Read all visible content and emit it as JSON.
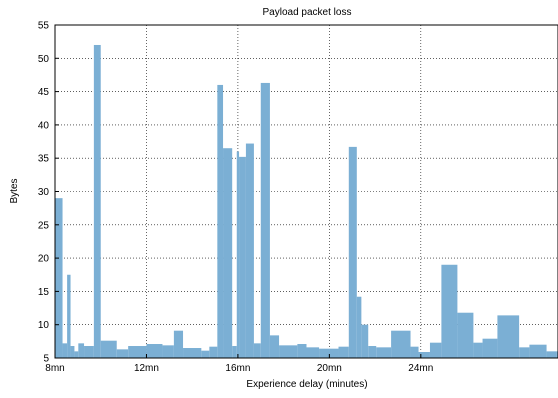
{
  "chart_data": {
    "type": "bar",
    "title": "Payload packet loss",
    "xlabel": "Experience delay (minutes)",
    "ylabel": "Bytes",
    "xlim": [
      8,
      30
    ],
    "ylim": [
      5,
      55
    ],
    "grid": true,
    "bar_color": "#7bafd4",
    "x_ticks": [
      {
        "value": 8,
        "label": "8mn"
      },
      {
        "value": 12,
        "label": "12mn"
      },
      {
        "value": 16,
        "label": "16mn"
      },
      {
        "value": 20,
        "label": "20mn"
      },
      {
        "value": 24,
        "label": "24mn"
      }
    ],
    "y_ticks": [
      5,
      10,
      15,
      20,
      25,
      30,
      35,
      40,
      45,
      50,
      55
    ],
    "bars": [
      {
        "x0": 8.0,
        "x1": 8.33,
        "y": 29.0
      },
      {
        "x0": 8.33,
        "x1": 8.53,
        "y": 7.2
      },
      {
        "x0": 8.53,
        "x1": 8.68,
        "y": 17.5
      },
      {
        "x0": 8.68,
        "x1": 8.85,
        "y": 6.8
      },
      {
        "x0": 8.85,
        "x1": 9.02,
        "y": 6.0
      },
      {
        "x0": 9.02,
        "x1": 9.27,
        "y": 7.2
      },
      {
        "x0": 9.27,
        "x1": 9.7,
        "y": 6.8
      },
      {
        "x0": 9.7,
        "x1": 10.0,
        "y": 52.0
      },
      {
        "x0": 10.0,
        "x1": 10.7,
        "y": 7.6
      },
      {
        "x0": 10.7,
        "x1": 11.2,
        "y": 6.3
      },
      {
        "x0": 11.2,
        "x1": 12.0,
        "y": 6.8
      },
      {
        "x0": 12.0,
        "x1": 12.7,
        "y": 7.1
      },
      {
        "x0": 12.7,
        "x1": 13.2,
        "y": 6.9
      },
      {
        "x0": 13.2,
        "x1": 13.6,
        "y": 9.1
      },
      {
        "x0": 13.6,
        "x1": 14.4,
        "y": 6.5
      },
      {
        "x0": 14.4,
        "x1": 14.75,
        "y": 6.1
      },
      {
        "x0": 14.75,
        "x1": 15.1,
        "y": 6.7
      },
      {
        "x0": 15.1,
        "x1": 15.35,
        "y": 46.0
      },
      {
        "x0": 15.35,
        "x1": 15.75,
        "y": 36.5
      },
      {
        "x0": 15.75,
        "x1": 15.95,
        "y": 6.8
      },
      {
        "x0": 15.95,
        "x1": 16.05,
        "y": 36.0
      },
      {
        "x0": 16.05,
        "x1": 16.35,
        "y": 35.2
      },
      {
        "x0": 16.35,
        "x1": 16.7,
        "y": 37.2
      },
      {
        "x0": 16.7,
        "x1": 17.0,
        "y": 7.2
      },
      {
        "x0": 17.0,
        "x1": 17.4,
        "y": 46.3
      },
      {
        "x0": 17.4,
        "x1": 17.8,
        "y": 8.4
      },
      {
        "x0": 17.8,
        "x1": 18.6,
        "y": 6.9
      },
      {
        "x0": 18.6,
        "x1": 19.0,
        "y": 7.1
      },
      {
        "x0": 19.0,
        "x1": 19.55,
        "y": 6.6
      },
      {
        "x0": 19.55,
        "x1": 20.4,
        "y": 6.4
      },
      {
        "x0": 20.4,
        "x1": 20.85,
        "y": 6.7
      },
      {
        "x0": 20.85,
        "x1": 21.2,
        "y": 36.7
      },
      {
        "x0": 21.2,
        "x1": 21.4,
        "y": 14.2
      },
      {
        "x0": 21.4,
        "x1": 21.7,
        "y": 10.0
      },
      {
        "x0": 21.7,
        "x1": 22.05,
        "y": 6.8
      },
      {
        "x0": 22.05,
        "x1": 22.7,
        "y": 6.6
      },
      {
        "x0": 22.7,
        "x1": 23.55,
        "y": 9.1
      },
      {
        "x0": 23.55,
        "x1": 23.9,
        "y": 6.7
      },
      {
        "x0": 23.9,
        "x1": 24.4,
        "y": 5.9
      },
      {
        "x0": 24.4,
        "x1": 24.9,
        "y": 7.3
      },
      {
        "x0": 24.9,
        "x1": 25.6,
        "y": 19.0
      },
      {
        "x0": 25.6,
        "x1": 26.3,
        "y": 11.8
      },
      {
        "x0": 26.3,
        "x1": 26.7,
        "y": 7.3
      },
      {
        "x0": 26.7,
        "x1": 27.35,
        "y": 7.9
      },
      {
        "x0": 27.35,
        "x1": 28.3,
        "y": 11.4
      },
      {
        "x0": 28.3,
        "x1": 28.75,
        "y": 6.6
      },
      {
        "x0": 28.75,
        "x1": 29.5,
        "y": 7.0
      },
      {
        "x0": 29.5,
        "x1": 29.95,
        "y": 6.0
      },
      {
        "x0": 29.95,
        "x1": 30.4,
        "y": 6.0
      },
      {
        "x0": 30.4,
        "x1": 30.9,
        "y": 7.0
      }
    ]
  }
}
